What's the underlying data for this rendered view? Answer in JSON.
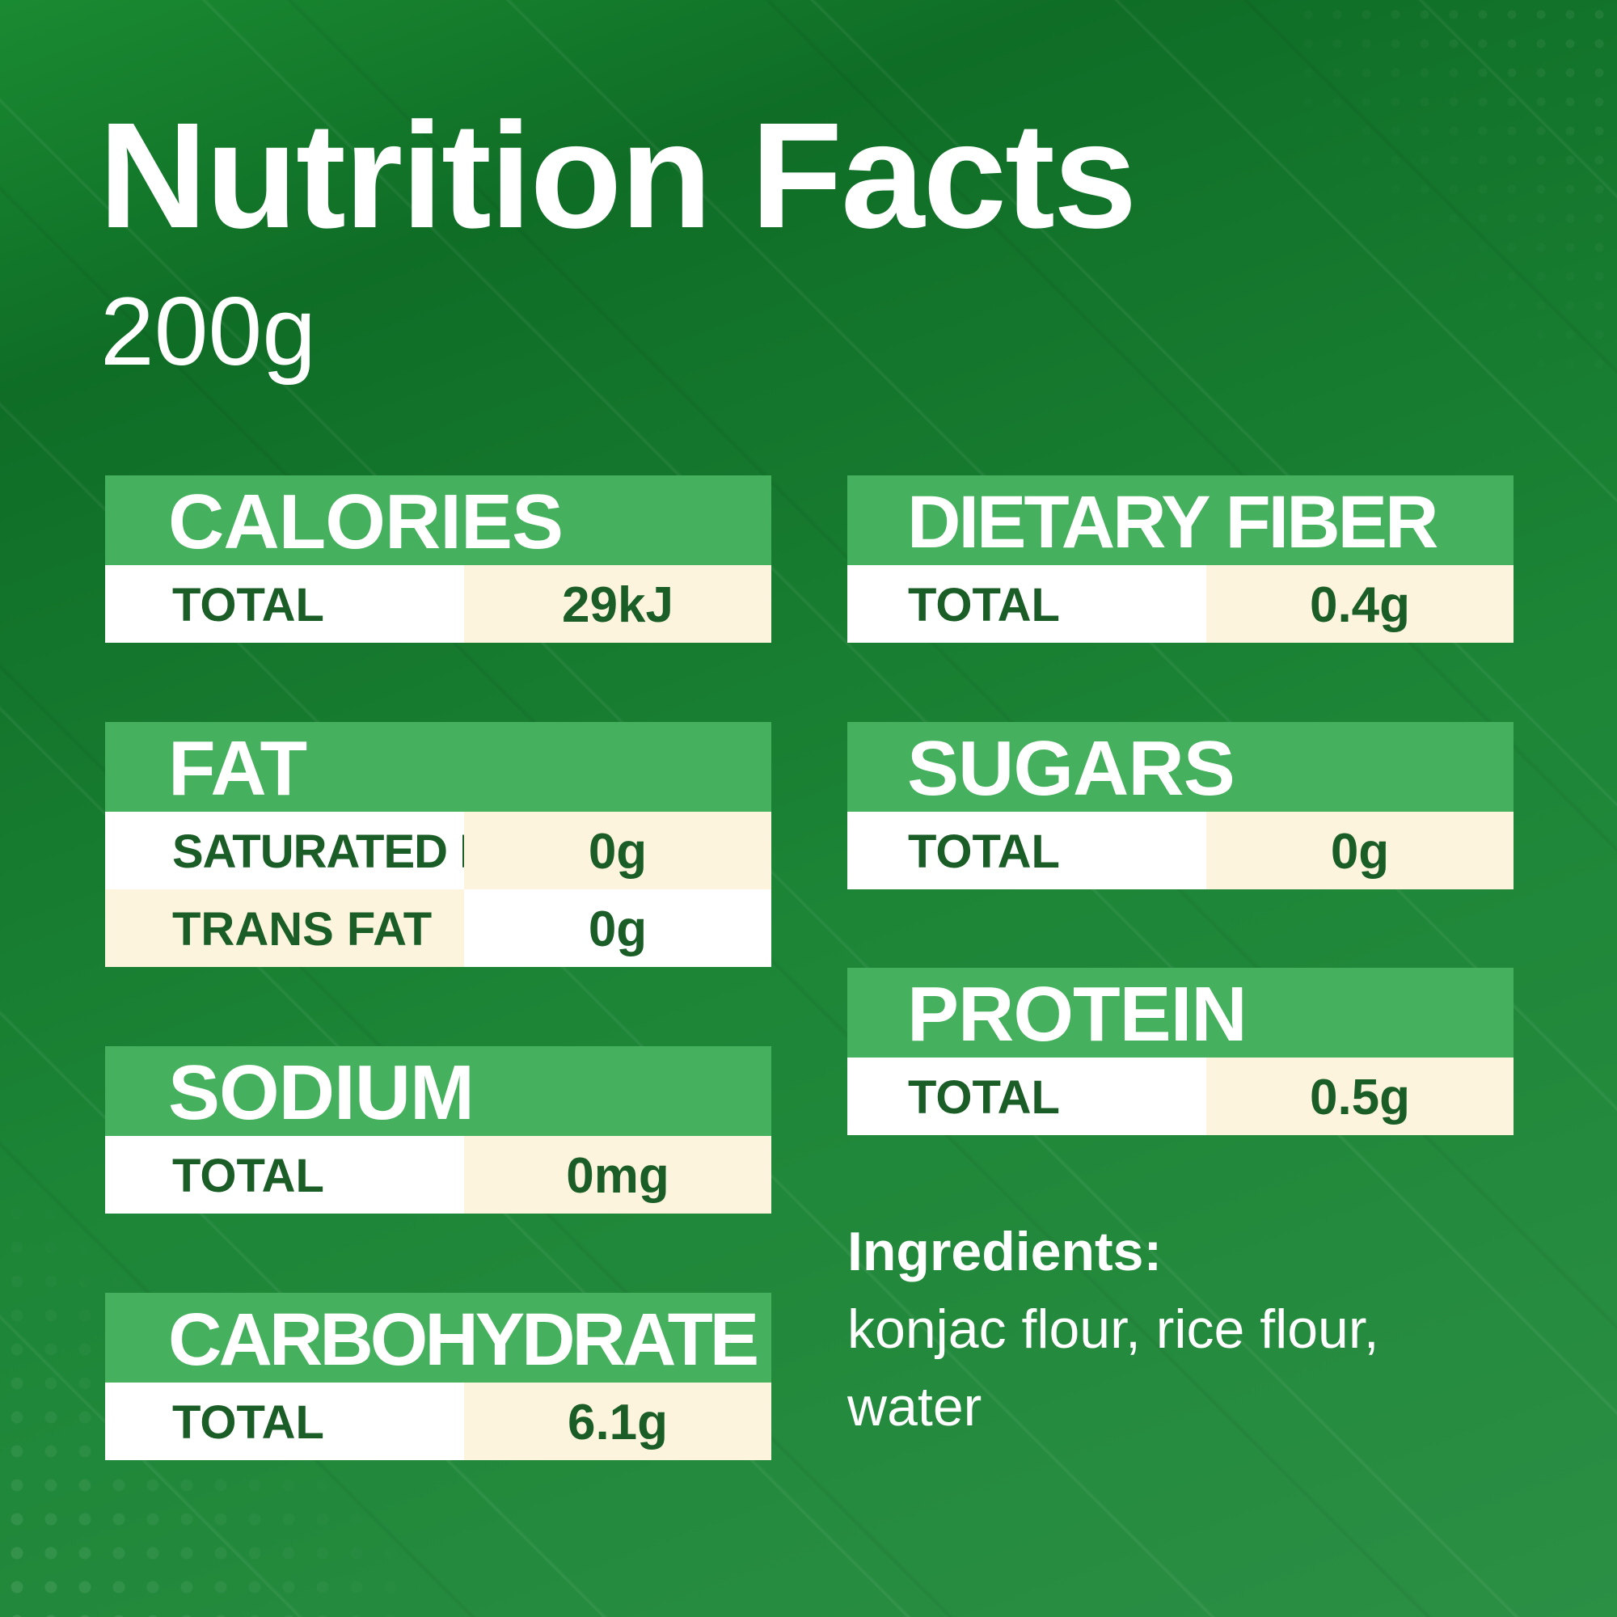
{
  "title": "Nutrition Facts",
  "serving": "200g",
  "colors": {
    "background": "#1a8a32",
    "card_header": "#45b05d",
    "row_white": "#ffffff",
    "row_cream": "#fdf4dd",
    "row_text": "#1a5d27"
  },
  "cards": {
    "calories": {
      "heading": "CALORIES",
      "rows": [
        {
          "label": "TOTAL",
          "value": "29kJ"
        }
      ]
    },
    "fat": {
      "heading": "FAT",
      "rows": [
        {
          "label": "SATURATED FAT",
          "value": "0g"
        },
        {
          "label": "TRANS FAT",
          "value": "0g"
        }
      ]
    },
    "sodium": {
      "heading": "SODIUM",
      "rows": [
        {
          "label": "TOTAL",
          "value": "0mg"
        }
      ]
    },
    "carbohydrate": {
      "heading": "CARBOHYDRATE",
      "rows": [
        {
          "label": "TOTAL",
          "value": "6.1g"
        }
      ]
    },
    "dietary_fiber": {
      "heading": "DIETARY FIBER",
      "rows": [
        {
          "label": "TOTAL",
          "value": "0.4g"
        }
      ]
    },
    "sugars": {
      "heading": "SUGARS",
      "rows": [
        {
          "label": "TOTAL",
          "value": "0g"
        }
      ]
    },
    "protein": {
      "heading": "PROTEIN",
      "rows": [
        {
          "label": "TOTAL",
          "value": "0.5g"
        }
      ]
    }
  },
  "ingredients": {
    "heading": "Ingredients:",
    "line1": "konjac flour, rice flour,",
    "line2": "water"
  }
}
